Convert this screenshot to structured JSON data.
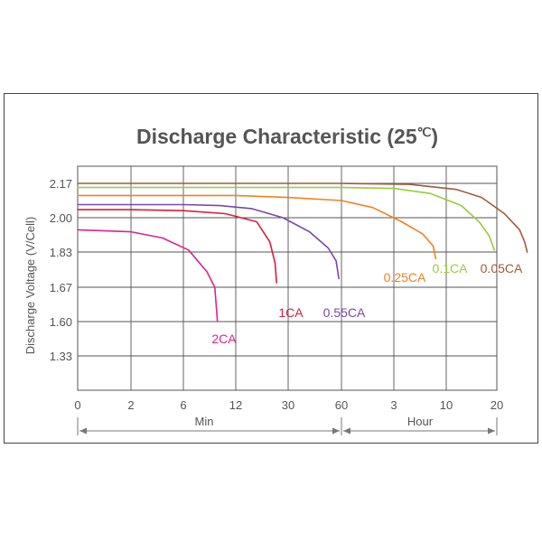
{
  "chart_data": {
    "type": "line",
    "title": "Discharge Characteristic (25",
    "title_unit": "℃",
    "title_close": ")",
    "ylabel": "Discharge Voltage (V/Cell)",
    "y_ticks": [
      "2.17",
      "2.00",
      "1.83",
      "1.67",
      "1.60",
      "1.33"
    ],
    "x_ticks": [
      "0",
      "2",
      "6",
      "12",
      "30",
      "60",
      "3",
      "10",
      "20"
    ],
    "x_sections": [
      {
        "label": "Min",
        "from_tick": 0,
        "to_tick": 5
      },
      {
        "label": "Hour",
        "from_tick": 5,
        "to_tick": 8
      }
    ],
    "series": [
      {
        "name": "2CA",
        "color": "#d6258e",
        "points": [
          [
            0,
            1.94
          ],
          [
            1,
            1.93
          ],
          [
            1.6,
            1.9
          ],
          [
            2.1,
            1.84
          ],
          [
            2.45,
            1.74
          ],
          [
            2.6,
            1.67
          ],
          [
            2.65,
            1.6
          ]
        ]
      },
      {
        "name": "1CA",
        "color": "#d81e3a",
        "points": [
          [
            0,
            2.04
          ],
          [
            1,
            2.04
          ],
          [
            2,
            2.035
          ],
          [
            2.8,
            2.02
          ],
          [
            3.4,
            1.98
          ],
          [
            3.65,
            1.88
          ],
          [
            3.75,
            1.78
          ],
          [
            3.78,
            1.69
          ]
        ]
      },
      {
        "name": "0.55CA",
        "color": "#7a46a8",
        "points": [
          [
            0,
            2.065
          ],
          [
            1,
            2.065
          ],
          [
            2,
            2.065
          ],
          [
            2.7,
            2.06
          ],
          [
            3.3,
            2.045
          ],
          [
            3.9,
            2.0
          ],
          [
            4.4,
            1.93
          ],
          [
            4.75,
            1.85
          ],
          [
            4.9,
            1.79
          ],
          [
            4.95,
            1.71
          ]
        ]
      },
      {
        "name": "0.25CA",
        "color": "#ef8221",
        "points": [
          [
            0,
            2.11
          ],
          [
            2,
            2.11
          ],
          [
            3,
            2.11
          ],
          [
            4,
            2.1
          ],
          [
            5,
            2.085
          ],
          [
            5.6,
            2.05
          ],
          [
            6.15,
            1.98
          ],
          [
            6.55,
            1.92
          ],
          [
            6.75,
            1.86
          ],
          [
            6.8,
            1.8
          ]
        ]
      },
      {
        "name": "0.1CA",
        "color": "#9acb3b",
        "points": [
          [
            0,
            2.15
          ],
          [
            3,
            2.15
          ],
          [
            5,
            2.15
          ],
          [
            6,
            2.145
          ],
          [
            6.7,
            2.12
          ],
          [
            7.3,
            2.06
          ],
          [
            7.65,
            1.98
          ],
          [
            7.85,
            1.91
          ],
          [
            7.95,
            1.84
          ]
        ]
      },
      {
        "name": "0.05CA",
        "color": "#a05a3c",
        "points": [
          [
            0,
            2.17
          ],
          [
            3,
            2.17
          ],
          [
            5,
            2.17
          ],
          [
            6.3,
            2.165
          ],
          [
            7.2,
            2.14
          ],
          [
            7.7,
            2.1
          ],
          [
            8.15,
            2.02
          ],
          [
            8.45,
            1.94
          ],
          [
            8.55,
            1.88
          ],
          [
            8.6,
            1.83
          ]
        ]
      }
    ]
  }
}
